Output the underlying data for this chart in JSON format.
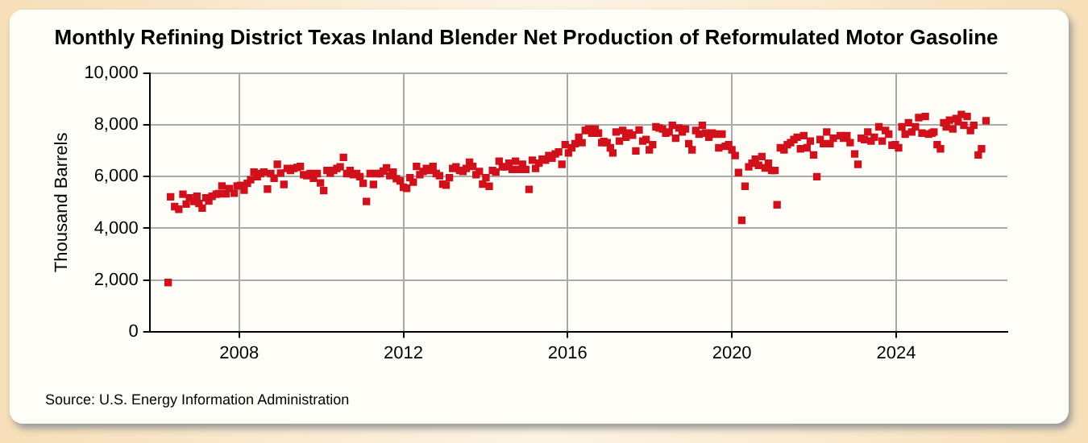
{
  "chart_data": {
    "type": "scatter",
    "title": "Monthly Refining District Texas Inland Blender Net Production of Reformulated Motor Gasoline",
    "ylabel": "Thousand Barrels",
    "annotations": [
      "Source: U.S. Energy Information Administration"
    ],
    "xlim": [
      2005.82,
      2026.71
    ],
    "xticks": [
      2008,
      2012,
      2016,
      2020,
      2024
    ],
    "ylim": [
      0,
      10000
    ],
    "yticks": [
      {
        "value": 0,
        "label": "0"
      },
      {
        "value": 2000,
        "label": "2,000"
      },
      {
        "value": 4000,
        "label": "4,000"
      },
      {
        "value": 6000,
        "label": "6,000"
      },
      {
        "value": 8000,
        "label": "8,000"
      },
      {
        "value": 10000,
        "label": "10,000"
      }
    ],
    "grid": true,
    "marker": "square",
    "series": [
      {
        "color": "#d0101a",
        "x": [
          2006.27,
          2006.33,
          2006.43,
          2006.53,
          2006.63,
          2006.71,
          2006.79,
          2006.9,
          2006.97,
          2007.02,
          2007.1,
          2007.19,
          2007.26,
          2007.34,
          2007.44,
          2007.5,
          2007.58,
          2007.68,
          2007.76,
          2007.88,
          2007.95,
          2008.04,
          2008.12,
          2008.2,
          2008.28,
          2008.36,
          2008.44,
          2008.52,
          2008.6,
          2008.69,
          2008.77,
          2008.85,
          2008.93,
          2009.01,
          2009.09,
          2009.17,
          2009.25,
          2009.33,
          2009.41,
          2009.49,
          2009.57,
          2009.65,
          2009.73,
          2009.81,
          2009.9,
          2009.98,
          2010.06,
          2010.14,
          2010.22,
          2010.3,
          2010.38,
          2010.46,
          2010.54,
          2010.62,
          2010.7,
          2010.78,
          2010.86,
          2010.94,
          2011.02,
          2011.1,
          2011.19,
          2011.27,
          2011.35,
          2011.43,
          2011.51,
          2011.59,
          2011.67,
          2011.75,
          2011.83,
          2011.92,
          2012.0,
          2012.08,
          2012.16,
          2012.24,
          2012.32,
          2012.4,
          2012.48,
          2012.56,
          2012.64,
          2012.72,
          2012.8,
          2012.88,
          2012.96,
          2013.04,
          2013.12,
          2013.2,
          2013.28,
          2013.37,
          2013.45,
          2013.53,
          2013.61,
          2013.69,
          2013.77,
          2013.85,
          2013.93,
          2014.01,
          2014.09,
          2014.17,
          2014.25,
          2014.33,
          2014.41,
          2014.49,
          2014.57,
          2014.65,
          2014.73,
          2014.82,
          2014.9,
          2014.98,
          2015.06,
          2015.14,
          2015.22,
          2015.3,
          2015.38,
          2015.46,
          2015.54,
          2015.62,
          2015.7,
          2015.78,
          2015.86,
          2015.94,
          2016.02,
          2016.1,
          2016.18,
          2016.27,
          2016.35,
          2016.43,
          2016.51,
          2016.59,
          2016.67,
          2016.75,
          2016.83,
          2016.88,
          2016.96,
          2017.04,
          2017.1,
          2017.18,
          2017.26,
          2017.34,
          2017.42,
          2017.5,
          2017.58,
          2017.66,
          2017.74,
          2017.83,
          2017.91,
          2017.99,
          2018.07,
          2018.15,
          2018.23,
          2018.31,
          2018.39,
          2018.47,
          2018.55,
          2018.63,
          2018.71,
          2018.79,
          2018.87,
          2018.95,
          2019.03,
          2019.12,
          2019.2,
          2019.28,
          2019.36,
          2019.44,
          2019.52,
          2019.6,
          2019.68,
          2019.76,
          2019.84,
          2019.92,
          2020.0,
          2020.08,
          2020.16,
          2020.24,
          2020.32,
          2020.41,
          2020.49,
          2020.57,
          2020.65,
          2020.73,
          2020.81,
          2020.89,
          2020.97,
          2021.05,
          2021.1,
          2021.18,
          2021.27,
          2021.35,
          2021.43,
          2021.51,
          2021.59,
          2021.67,
          2021.75,
          2021.83,
          2021.91,
          2021.99,
          2022.07,
          2022.15,
          2022.23,
          2022.31,
          2022.39,
          2022.47,
          2022.64,
          2022.72,
          2022.8,
          2022.88,
          2022.99,
          2023.07,
          2023.15,
          2023.23,
          2023.31,
          2023.39,
          2023.47,
          2023.58,
          2023.66,
          2023.74,
          2023.82,
          2023.9,
          2023.98,
          2024.06,
          2024.14,
          2024.22,
          2024.3,
          2024.38,
          2024.47,
          2024.55,
          2024.63,
          2024.71,
          2024.79,
          2024.87,
          2024.92,
          2025.0,
          2025.08,
          2025.16,
          2025.22,
          2025.3,
          2025.38,
          2025.46,
          2025.51,
          2025.59,
          2025.65,
          2025.73,
          2025.81,
          2025.89,
          2026.0,
          2026.08,
          2026.19
        ],
        "values": [
          1900,
          5220,
          4840,
          4740,
          5320,
          4940,
          5180,
          5040,
          5240,
          4960,
          4780,
          5180,
          5060,
          5240,
          5320,
          5340,
          5640,
          5340,
          5540,
          5360,
          5640,
          5660,
          5480,
          5740,
          5880,
          6180,
          6000,
          6120,
          6180,
          5520,
          6120,
          5940,
          6480,
          6140,
          5700,
          6320,
          6240,
          6320,
          6360,
          6400,
          6080,
          6040,
          6120,
          5940,
          6120,
          5760,
          5460,
          6240,
          6140,
          6240,
          6320,
          6380,
          6750,
          6120,
          6240,
          6080,
          6120,
          6000,
          5740,
          5040,
          6120,
          5700,
          6120,
          6120,
          6220,
          6340,
          6040,
          6180,
          5920,
          5840,
          5590,
          5550,
          5960,
          5790,
          6400,
          6080,
          6200,
          6320,
          6240,
          6400,
          6120,
          6040,
          5710,
          5670,
          5960,
          6320,
          6380,
          6240,
          6200,
          6320,
          6560,
          6400,
          6080,
          6200,
          5710,
          5960,
          5630,
          6240,
          6180,
          6600,
          6380,
          6380,
          6520,
          6280,
          6600,
          6280,
          6480,
          6280,
          5510,
          6640,
          6320,
          6520,
          6680,
          6640,
          6820,
          6720,
          6880,
          6960,
          6480,
          7240,
          6920,
          7120,
          7280,
          7530,
          7320,
          7790,
          7850,
          7690,
          7850,
          7690,
          7320,
          7360,
          7320,
          7120,
          6920,
          7730,
          7380,
          7790,
          7530,
          7690,
          7610,
          7000,
          7810,
          7380,
          7440,
          7040,
          7240,
          7930,
          7890,
          7850,
          7690,
          7730,
          7990,
          7490,
          7890,
          7730,
          7850,
          7280,
          7040,
          7790,
          7650,
          7990,
          7690,
          7530,
          7690,
          7650,
          7120,
          7650,
          7180,
          7240,
          7040,
          6820,
          6160,
          4310,
          5630,
          6380,
          6520,
          6680,
          6440,
          6780,
          6340,
          6520,
          6240,
          6240,
          4910,
          7120,
          7040,
          7240,
          7320,
          7440,
          7530,
          7080,
          7590,
          7120,
          7380,
          6840,
          6000,
          7440,
          7280,
          7730,
          7280,
          7490,
          7590,
          7490,
          7590,
          7320,
          6880,
          6480,
          7490,
          7440,
          7730,
          7380,
          7530,
          7930,
          7380,
          7790,
          7650,
          7220,
          7240,
          7120,
          7930,
          7650,
          8090,
          7730,
          7930,
          8290,
          7690,
          8330,
          7650,
          7690,
          7730,
          7240,
          7080,
          8090,
          7930,
          8190,
          7850,
          8250,
          8130,
          8410,
          7990,
          8330,
          7790,
          7990,
          6840,
          7080,
          8170
        ]
      }
    ]
  }
}
